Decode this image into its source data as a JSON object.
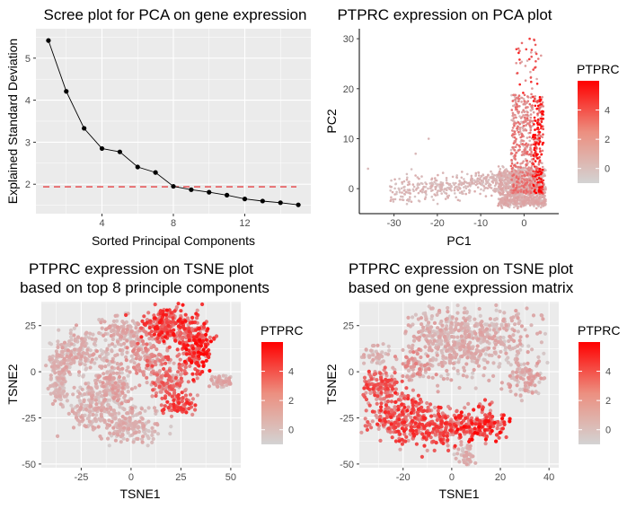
{
  "chart_data": [
    {
      "type": "line",
      "title": "Scree plot for PCA on gene expression",
      "xlabel": "Sorted Principal Components",
      "ylabel": "Explained Standard Deviation",
      "xlim": [
        0.3,
        15.7
      ],
      "ylim": [
        1.3,
        5.7
      ],
      "xticks": [
        "4",
        "8",
        "12"
      ],
      "yticks": [
        "2",
        "3",
        "4",
        "5"
      ],
      "x": [
        1,
        2,
        3,
        4,
        5,
        6,
        7,
        8,
        9,
        10,
        11,
        12,
        13,
        14,
        15
      ],
      "y": [
        5.42,
        4.21,
        3.33,
        2.85,
        2.77,
        2.41,
        2.28,
        1.95,
        1.87,
        1.81,
        1.74,
        1.65,
        1.6,
        1.56,
        1.51
      ],
      "reference_line": {
        "y": 1.94,
        "style": "dashed",
        "color": "#e41a1c"
      },
      "grid": true
    },
    {
      "type": "scatter",
      "title": "PTPRC expression on PCA plot",
      "xlabel": "PC1",
      "ylabel": "PC2",
      "xlim": [
        -38,
        8
      ],
      "ylim": [
        -5,
        32
      ],
      "xticks": [
        "-30",
        "-20",
        "-10",
        "0"
      ],
      "yticks": [
        "0",
        "10",
        "20",
        "30"
      ],
      "legend": {
        "title": "PTPRC",
        "ticks": [
          "4",
          "2",
          "0"
        ],
        "range": [
          -1,
          6
        ],
        "low": "#d3d3d3",
        "high": "#ff0000",
        "position": "right"
      },
      "grid": false
    },
    {
      "type": "scatter",
      "title": "PTPRC expression on TSNE plot\nbased on top 8 principle components",
      "title_lines": [
        "PTPRC expression on TSNE plot",
        "based on top 8 principle components"
      ],
      "xlabel": "TSNE1",
      "ylabel": "TSNE2",
      "xlim": [
        -45,
        55
      ],
      "ylim": [
        -52,
        38
      ],
      "xticks": [
        "-25",
        "0",
        "25",
        "50"
      ],
      "yticks": [
        "25",
        "0",
        "-25",
        "-50"
      ],
      "legend": {
        "title": "PTPRC",
        "ticks": [
          "4",
          "2",
          "0"
        ],
        "range": [
          -1,
          6
        ],
        "low": "#d3d3d3",
        "high": "#ff0000",
        "position": "right"
      },
      "grid": true
    },
    {
      "type": "scatter",
      "title": "PTPRC expression on TSNE plot\nbased on gene expression matrix",
      "title_lines": [
        "PTPRC expression on TSNE plot",
        "based on gene expression matrix"
      ],
      "xlabel": "TSNE1",
      "ylabel": "TSNE2",
      "xlim": [
        -38,
        44
      ],
      "ylim": [
        -52,
        38
      ],
      "xticks": [
        "-20",
        "0",
        "20",
        "40"
      ],
      "yticks": [
        "25",
        "0",
        "-25",
        "-50"
      ],
      "legend": {
        "title": "PTPRC",
        "ticks": [
          "4",
          "2",
          "0"
        ],
        "range": [
          -1,
          6
        ],
        "low": "#d3d3d3",
        "high": "#ff0000",
        "position": "right"
      },
      "grid": true
    }
  ],
  "colors": {
    "panel_bg": "#ebebeb",
    "grid": "#ffffff",
    "point_low": "#d3d3d3",
    "point_high": "#ff0000",
    "line": "#000000"
  }
}
